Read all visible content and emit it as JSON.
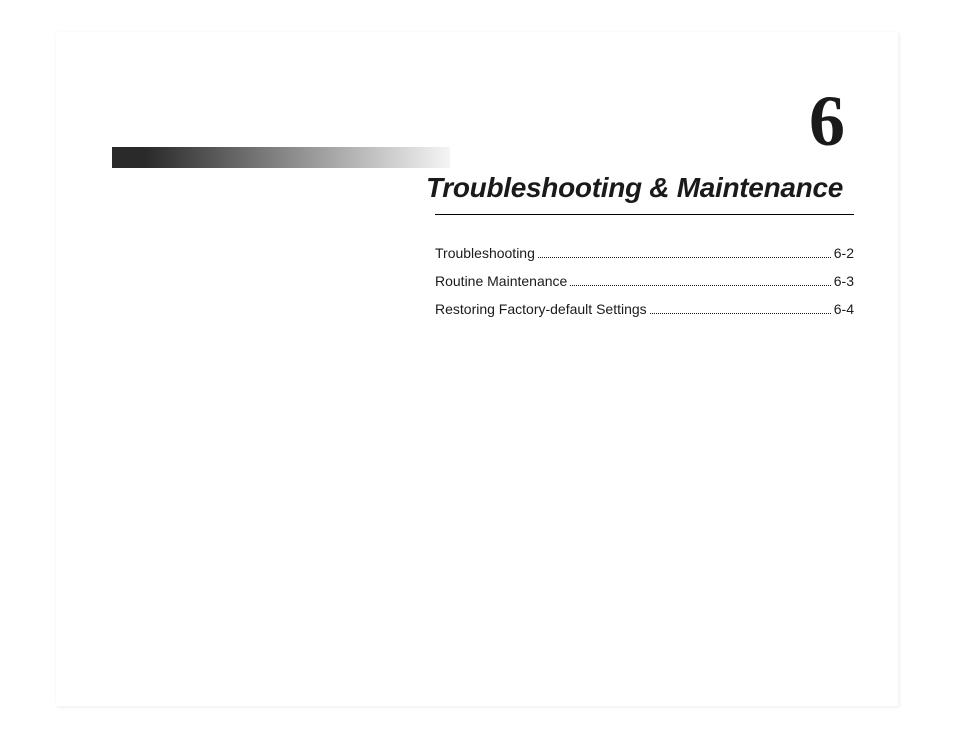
{
  "chapter": {
    "number": "6",
    "title": "Troubleshooting & Maintenance"
  },
  "toc": {
    "items": [
      {
        "label": "Troubleshooting",
        "page": "6-2"
      },
      {
        "label": "Routine Maintenance",
        "page": "6-3"
      },
      {
        "label": "Restoring Factory-default Settings",
        "page": "6-4"
      }
    ]
  },
  "style": {
    "page_bg": "#ffffff",
    "text_color": "#1a1a1a",
    "chapter_number_fontsize": 72,
    "chapter_title_fontsize": 28,
    "toc_fontsize": 14,
    "gradient_from": "#2a2a2a",
    "gradient_to": "#f5f5f5",
    "rule_color": "#000000"
  }
}
